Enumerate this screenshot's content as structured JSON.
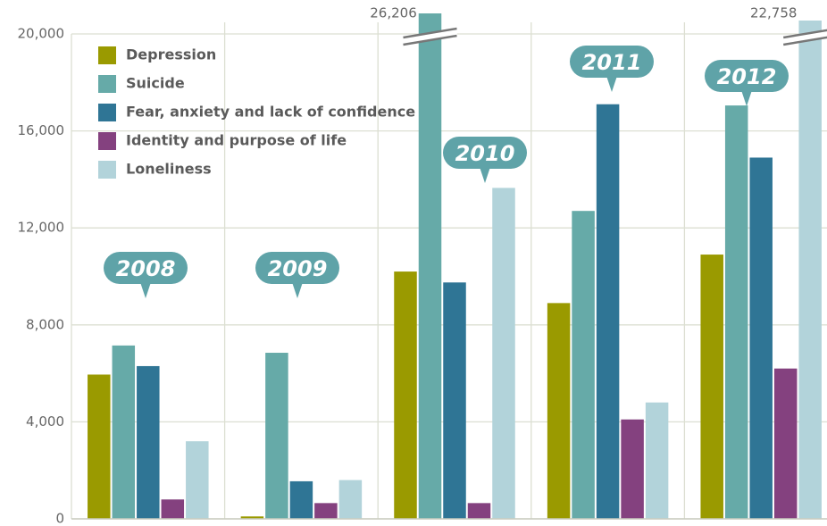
{
  "chart_data": {
    "type": "bar",
    "categories": [
      "2008",
      "2009",
      "2010",
      "2011",
      "2012"
    ],
    "series": [
      {
        "name": "Depression",
        "color": "#9a9a00",
        "values": [
          5950,
          100,
          10200,
          8900,
          10900
        ]
      },
      {
        "name": "Suicide",
        "color": "#66aaa8",
        "values": [
          7150,
          6850,
          26206,
          12700,
          17050
        ],
        "value_labels": [
          null,
          null,
          "26,206",
          null,
          null
        ]
      },
      {
        "name": "Fear, anxiety and lack of confidence",
        "color": "#2f7595",
        "values": [
          6300,
          1550,
          9750,
          17100,
          14900
        ]
      },
      {
        "name": "Identity and purpose of life",
        "color": "#84417f",
        "values": [
          800,
          650,
          650,
          4100,
          6200
        ]
      },
      {
        "name": "Loneliness",
        "color": "#b2d3da",
        "values": [
          3200,
          1600,
          13650,
          4800,
          22758
        ],
        "value_labels": [
          null,
          null,
          null,
          null,
          "22,758"
        ]
      }
    ],
    "ylim": [
      0,
      20000
    ],
    "yticks": [
      0,
      {
        "value": 4000,
        "label": "4,000"
      },
      {
        "value": 8000,
        "label": "8,000"
      },
      {
        "value": 12000,
        "label": "12,000"
      },
      {
        "value": 16000,
        "label": "16,000"
      },
      {
        "value": 20000,
        "label": "20,000"
      }
    ],
    "grid": true,
    "legend": "top-left",
    "callout_color": "#5fa3a8"
  }
}
